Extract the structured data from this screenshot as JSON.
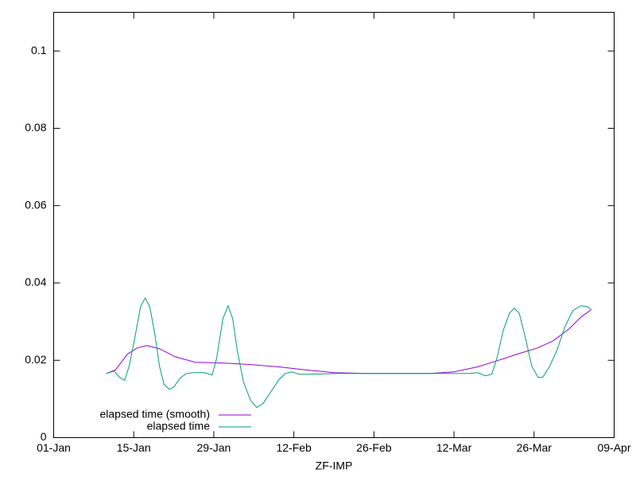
{
  "chart_data": {
    "type": "line",
    "xlabel": "ZF-IMP",
    "xlim": [
      0,
      98
    ],
    "xticks": [
      {
        "value": 0,
        "label": "01-Jan"
      },
      {
        "value": 14,
        "label": "15-Jan"
      },
      {
        "value": 28,
        "label": "29-Jan"
      },
      {
        "value": 42,
        "label": "12-Feb"
      },
      {
        "value": 56,
        "label": "26-Feb"
      },
      {
        "value": 70,
        "label": "12-Mar"
      },
      {
        "value": 84,
        "label": "26-Mar"
      },
      {
        "value": 98,
        "label": "09-Apr"
      }
    ],
    "ylim": [
      0,
      0.11
    ],
    "yticks": [
      0,
      0.02,
      0.04,
      0.06,
      0.08,
      0.1
    ],
    "legend": "bottom-left",
    "series": [
      {
        "name": "elapsed time (smooth)",
        "color": "#9400d3",
        "x": [
          9.2,
          10.8,
          12.9,
          14.6,
          16.3,
          18.5,
          21.3,
          24.8,
          29.6,
          34.5,
          39.4,
          44.2,
          49.1,
          54.7,
          65.8,
          70.0,
          74.1,
          77.6,
          81.1,
          84.6,
          87.3,
          90.1,
          92.2,
          94.0
        ],
        "values": [
          0.0166,
          0.0175,
          0.0216,
          0.0232,
          0.0238,
          0.023,
          0.0209,
          0.0195,
          0.0193,
          0.0189,
          0.0183,
          0.0175,
          0.0168,
          0.0166,
          0.0166,
          0.017,
          0.0183,
          0.0199,
          0.0216,
          0.0232,
          0.025,
          0.0281,
          0.0312,
          0.0331
        ]
      },
      {
        "name": "elapsed time",
        "color": "#009e73",
        "x": [
          9.2,
          10.6,
          11.5,
          12.4,
          13.2,
          14.3,
          15.2,
          16.0,
          16.8,
          17.7,
          18.5,
          19.3,
          20.2,
          21.0,
          22.1,
          23.2,
          24.6,
          26.3,
          27.7,
          28.5,
          29.6,
          30.5,
          31.3,
          32.1,
          33.2,
          34.4,
          35.5,
          36.6,
          38.0,
          39.4,
          40.5,
          41.6,
          43.0,
          44.4,
          50.0,
          60.0,
          72.7,
          74.1,
          75.5,
          76.6,
          77.5,
          78.6,
          79.7,
          80.5,
          81.4,
          82.5,
          83.6,
          84.7,
          85.5,
          86.6,
          88.0,
          89.4,
          90.8,
          92.2,
          93.3,
          94.0
        ],
        "values": [
          0.0166,
          0.0172,
          0.0156,
          0.0148,
          0.0185,
          0.0267,
          0.0339,
          0.0361,
          0.0339,
          0.0267,
          0.0185,
          0.0138,
          0.0125,
          0.0131,
          0.0154,
          0.0166,
          0.0168,
          0.0168,
          0.0162,
          0.0205,
          0.0308,
          0.0341,
          0.0308,
          0.0226,
          0.0144,
          0.0097,
          0.0078,
          0.0088,
          0.0119,
          0.015,
          0.0166,
          0.017,
          0.0164,
          0.0164,
          0.0166,
          0.0166,
          0.0166,
          0.0168,
          0.016,
          0.0164,
          0.0205,
          0.0277,
          0.0322,
          0.0335,
          0.0322,
          0.0257,
          0.0185,
          0.0156,
          0.0156,
          0.0181,
          0.0226,
          0.0287,
          0.0329,
          0.0341,
          0.0339,
          0.0331
        ]
      }
    ]
  }
}
